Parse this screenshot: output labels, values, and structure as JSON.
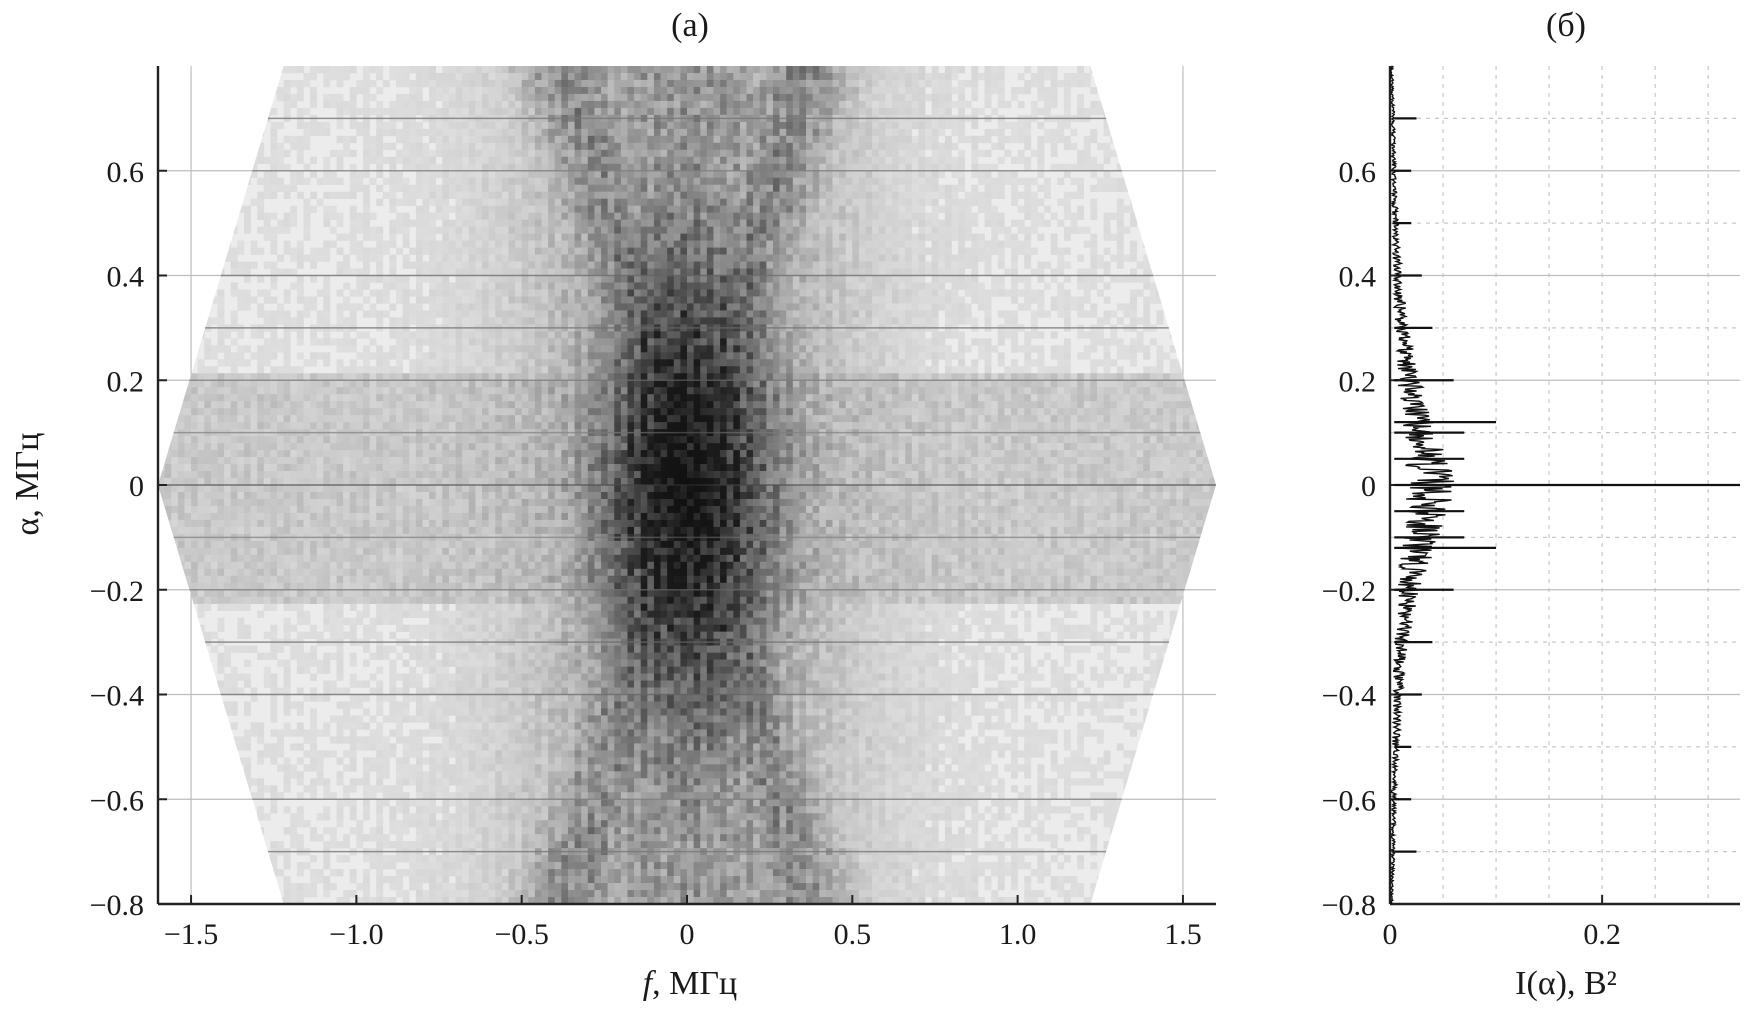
{
  "chart_data": [
    {
      "panel": "a",
      "type": "heatmap",
      "title": "(a)",
      "xlabel_italic": "f",
      "xlabel_rest": ", МГц",
      "ylabel": "α, МГц",
      "xlim": [
        -1.6,
        1.6
      ],
      "ylim": [
        -0.8,
        0.8
      ],
      "xticks": [
        -1.5,
        -1.0,
        -0.5,
        0,
        0.5,
        1.0,
        1.5
      ],
      "xtick_labels": [
        "−1.5",
        "−1.0",
        "−0.5",
        "0",
        "0.5",
        "1.0",
        "1.5"
      ],
      "yticks": [
        -0.8,
        -0.6,
        -0.4,
        -0.2,
        0,
        0.2,
        0.4,
        0.6
      ],
      "ytick_labels": [
        "−0.8",
        "−0.6",
        "−0.4",
        "−0.2",
        "0",
        "0.2",
        "0.4",
        "0.6"
      ],
      "grid": true,
      "colormap": "grayscale (white = low, black = high)",
      "support_region_vertices_f_alpha": [
        [
          -1.22,
          0.8
        ],
        [
          1.22,
          0.8
        ],
        [
          1.6,
          0
        ],
        [
          1.22,
          -0.8
        ],
        [
          -1.22,
          -0.8
        ],
        [
          -1.6,
          0
        ]
      ],
      "intensity_rows": [
        {
          "alpha": 0.7,
          "level": 0.5
        },
        {
          "alpha": 0.6,
          "level": 0.45
        },
        {
          "alpha": 0.4,
          "level": 0.55
        },
        {
          "alpha": 0.3,
          "level": 0.5
        },
        {
          "alpha": 0.2,
          "level": 0.45
        },
        {
          "alpha": 0.1,
          "level": 0.4
        },
        {
          "alpha": 0.0,
          "level": 0.7
        },
        {
          "alpha": -0.1,
          "level": 0.4
        },
        {
          "alpha": -0.2,
          "level": 0.45
        },
        {
          "alpha": -0.3,
          "level": 0.5
        },
        {
          "alpha": -0.4,
          "level": 0.55
        },
        {
          "alpha": -0.6,
          "level": 0.45
        },
        {
          "alpha": -0.7,
          "level": 0.5
        }
      ]
    },
    {
      "panel": "б",
      "type": "line",
      "orientation": "horizontal",
      "title": "(б)",
      "xlabel": "I(α), В²",
      "ylabel": "",
      "xlim": [
        0,
        0.33
      ],
      "ylim": [
        -0.8,
        0.8
      ],
      "xticks": [
        0,
        0.2
      ],
      "xtick_labels": [
        "0",
        "0.2"
      ],
      "yticks": [
        -0.8,
        -0.6,
        -0.4,
        -0.2,
        0,
        0.2,
        0.4,
        0.6
      ],
      "ytick_labels": [
        "−0.8",
        "−0.6",
        "−0.4",
        "−0.2",
        "0",
        "0.2",
        "0.4",
        "0.6"
      ],
      "grid": "dashed",
      "envelope": {
        "alpha": [
          -0.8,
          -0.7,
          -0.6,
          -0.5,
          -0.4,
          -0.3,
          -0.2,
          -0.15,
          -0.1,
          -0.05,
          0,
          0.05,
          0.1,
          0.15,
          0.2,
          0.3,
          0.4,
          0.5,
          0.6,
          0.7,
          0.8
        ],
        "I": [
          0.002,
          0.003,
          0.004,
          0.006,
          0.008,
          0.012,
          0.02,
          0.026,
          0.032,
          0.038,
          0.045,
          0.038,
          0.032,
          0.026,
          0.02,
          0.012,
          0.008,
          0.006,
          0.004,
          0.003,
          0.002
        ]
      },
      "spikes": {
        "alpha": [
          0.7,
          0.6,
          0.5,
          0.4,
          0.3,
          0.2,
          0.12,
          0.1,
          0.05,
          0,
          -0.05,
          -0.1,
          -0.12,
          -0.2,
          -0.3,
          -0.4,
          -0.5,
          -0.6,
          -0.7
        ],
        "I": [
          0.025,
          0.02,
          0.02,
          0.03,
          0.04,
          0.06,
          0.1,
          0.07,
          0.07,
          0.33,
          0.07,
          0.07,
          0.1,
          0.06,
          0.04,
          0.03,
          0.02,
          0.02,
          0.025
        ]
      }
    }
  ]
}
